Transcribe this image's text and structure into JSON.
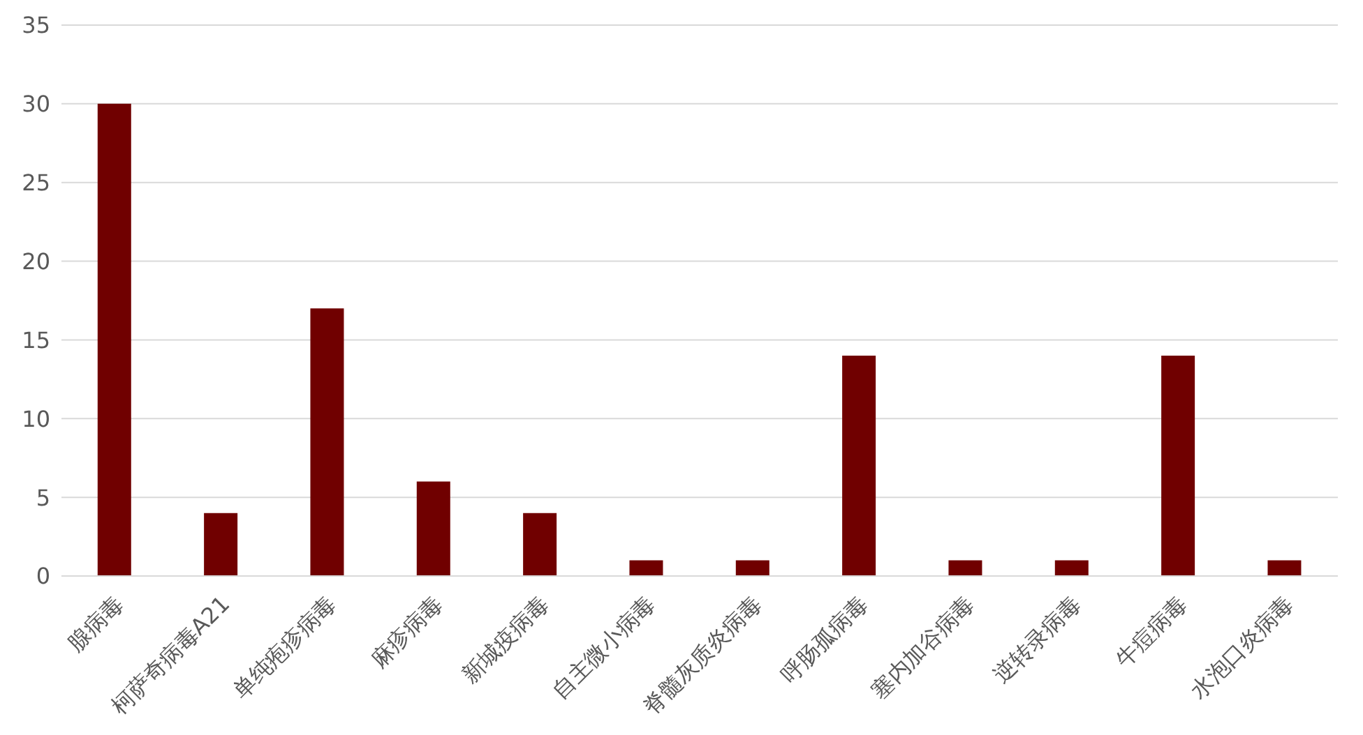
{
  "chart_data": {
    "type": "bar",
    "categories": [
      "腺病毒",
      "柯萨奇病毒A21",
      "单纯疱疹病毒",
      "麻疹病毒",
      "新城疫病毒",
      "自主微小病毒",
      "脊髓灰质炎病毒",
      "呼肠孤病毒",
      "塞内加谷病毒",
      "逆转录病毒",
      "牛痘病毒",
      "水泡口炎病毒"
    ],
    "values": [
      30,
      4,
      17,
      6,
      4,
      1,
      1,
      14,
      1,
      1,
      14,
      1
    ],
    "color": "#700000",
    "ylim": [
      0,
      35
    ],
    "yticks": [
      0,
      5,
      10,
      15,
      20,
      25,
      30,
      35
    ],
    "grid": "y"
  }
}
